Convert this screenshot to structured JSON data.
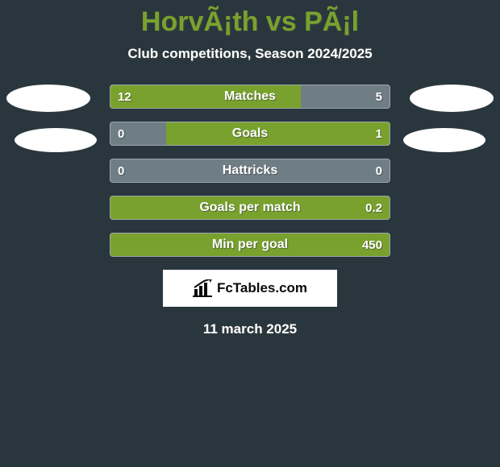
{
  "colors": {
    "page_bg": "#2a363d",
    "fg": "#ffffff",
    "accent": "#78a22d",
    "bar_track": "#6f7d85",
    "bar_border": "#9aa6ad",
    "ellipse": "#ffffff",
    "logo_bg": "#ffffff",
    "logo_text": "#0a0a0a",
    "logo_mark": "#0a0a0a"
  },
  "title": "HorvÃ¡th vs PÃ¡l",
  "subtitle": "Club competitions, Season 2024/2025",
  "date": "11 march 2025",
  "logo_text": "FcTables.com",
  "stats": {
    "bar": {
      "height": 30,
      "radius": 4,
      "label_fontsize": 16,
      "value_fontsize": 15
    },
    "rows": [
      {
        "label": "Matches",
        "left": "12",
        "right": "5",
        "left_pct": 68,
        "right_pct": 32,
        "left_fill": "accent",
        "right_fill": "bar_track"
      },
      {
        "label": "Goals",
        "left": "0",
        "right": "1",
        "left_pct": 20,
        "right_pct": 80,
        "left_fill": "bar_track",
        "right_fill": "accent"
      },
      {
        "label": "Hattricks",
        "left": "0",
        "right": "0",
        "left_pct": 0,
        "right_pct": 0,
        "left_fill": "accent",
        "right_fill": "accent"
      },
      {
        "label": "Goals per match",
        "left": "",
        "right": "0.2",
        "left_pct": 0,
        "right_pct": 100,
        "left_fill": "accent",
        "right_fill": "accent"
      },
      {
        "label": "Min per goal",
        "left": "",
        "right": "450",
        "left_pct": 0,
        "right_pct": 100,
        "left_fill": "accent",
        "right_fill": "accent"
      }
    ]
  }
}
